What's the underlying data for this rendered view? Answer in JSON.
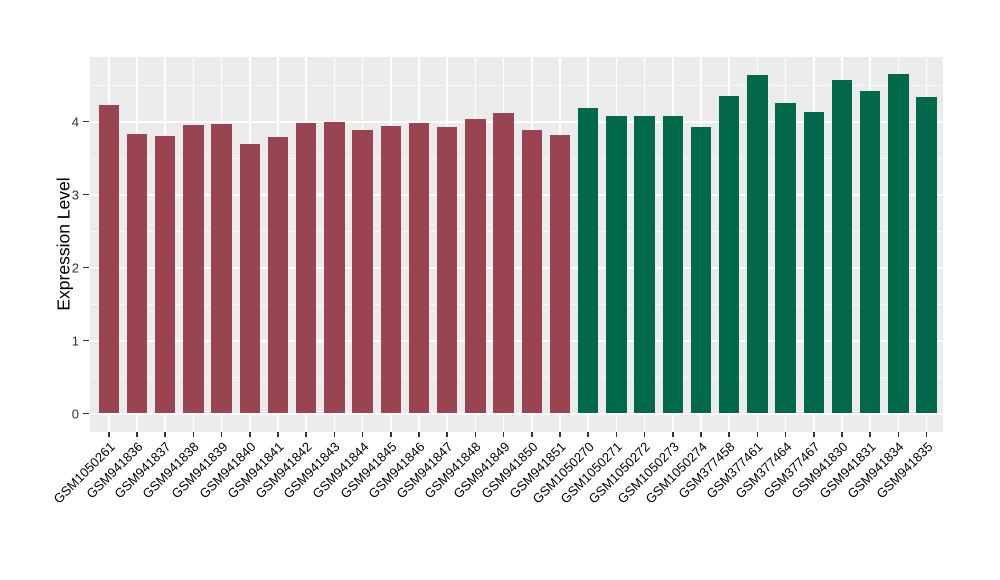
{
  "chart_data": {
    "type": "bar",
    "title": "",
    "xlabel": "",
    "ylabel": "Expression Level",
    "yticks": [
      0,
      1,
      2,
      3,
      4
    ],
    "ylim": [
      -0.25,
      4.9
    ],
    "grid": "on",
    "legend": "none",
    "panel_background": "#EBEBEB",
    "gridline_color": "#FFFFFF",
    "group_colors": {
      "maroon": "#9A4452",
      "green": "#00684B"
    },
    "categories": [
      "GSM1050261",
      "GSM941836",
      "GSM941837",
      "GSM941838",
      "GSM941839",
      "GSM941840",
      "GSM941841",
      "GSM941842",
      "GSM941843",
      "GSM941844",
      "GSM941845",
      "GSM941846",
      "GSM941847",
      "GSM941848",
      "GSM941849",
      "GSM941850",
      "GSM941851",
      "GSM1050270",
      "GSM1050271",
      "GSM1050272",
      "GSM1050273",
      "GSM1050274",
      "GSM377458",
      "GSM377461",
      "GSM377464",
      "GSM377467",
      "GSM941830",
      "GSM941831",
      "GSM941834",
      "GSM941835"
    ],
    "values": [
      4.22,
      3.83,
      3.8,
      3.95,
      3.97,
      3.69,
      3.79,
      3.98,
      3.99,
      3.89,
      3.94,
      3.98,
      3.92,
      4.04,
      4.11,
      3.89,
      3.81,
      4.19,
      4.08,
      4.07,
      4.08,
      3.93,
      4.35,
      4.64,
      4.26,
      4.13,
      4.57,
      4.42,
      4.65,
      4.33
    ],
    "bar_groups": [
      "maroon",
      "maroon",
      "maroon",
      "maroon",
      "maroon",
      "maroon",
      "maroon",
      "maroon",
      "maroon",
      "maroon",
      "maroon",
      "maroon",
      "maroon",
      "maroon",
      "maroon",
      "maroon",
      "maroon",
      "green",
      "green",
      "green",
      "green",
      "green",
      "green",
      "green",
      "green",
      "green",
      "green",
      "green",
      "green",
      "green"
    ]
  }
}
